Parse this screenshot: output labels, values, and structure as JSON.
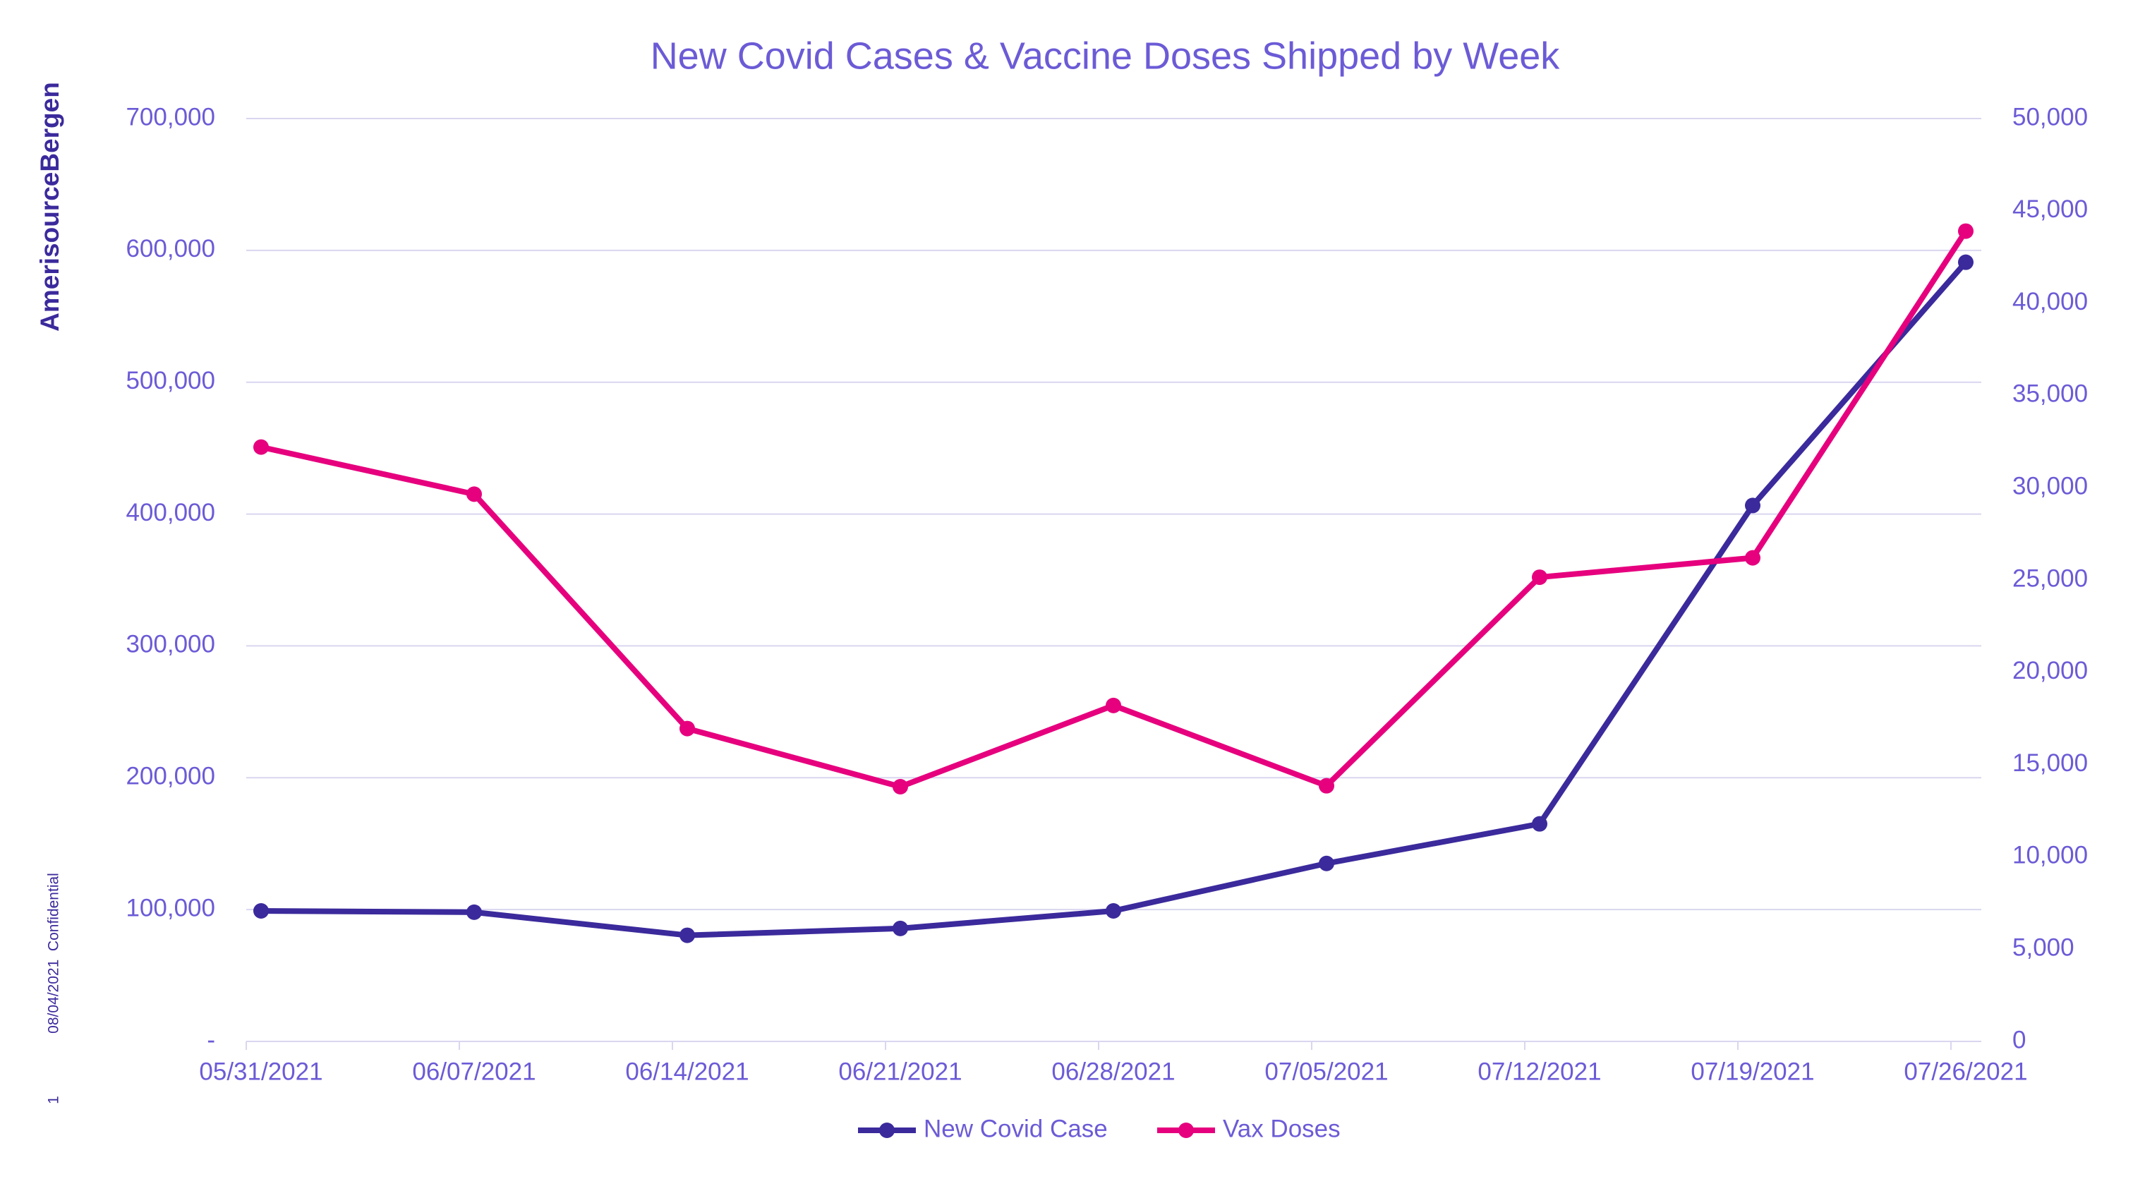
{
  "branding": {
    "logo": "AmerisourceBergen",
    "footer": "08/04/2021  Confidential",
    "page": "1"
  },
  "chart_data": {
    "type": "line",
    "title": "New Covid Cases & Vaccine Doses Shipped by Week",
    "categories": [
      "05/31/2021",
      "06/07/2021",
      "06/14/2021",
      "06/21/2021",
      "06/28/2021",
      "07/05/2021",
      "07/12/2021",
      "07/19/2021",
      "07/26/2021"
    ],
    "series": [
      {
        "name": "New Covid Case",
        "color": "#3b2a9c",
        "values": [
          99000,
          98000,
          80500,
          85700,
          99000,
          135000,
          165000,
          406500,
          591000
        ]
      },
      {
        "name": "Vax Doses",
        "color": "#e6007e",
        "axis": "y2",
        "values": [
          32200,
          29650,
          16950,
          13800,
          18200,
          13850,
          25150,
          26200,
          43900
        ]
      }
    ],
    "ylim": [
      0,
      700000
    ],
    "yticks": [
      {
        "value": 0,
        "label": "-"
      },
      {
        "value": 100000,
        "label": "100,000"
      },
      {
        "value": 200000,
        "label": "200,000"
      },
      {
        "value": 300000,
        "label": "300,000"
      },
      {
        "value": 400000,
        "label": "400,000"
      },
      {
        "value": 500000,
        "label": "500,000"
      },
      {
        "value": 600000,
        "label": "600,000"
      },
      {
        "value": 700000,
        "label": "700,000"
      }
    ],
    "y2lim": [
      0,
      50000
    ],
    "y2ticks": [
      0,
      {
        "value": 5000,
        "label": "5,000"
      },
      {
        "value": 10000,
        "label": "10,000"
      },
      {
        "value": 15000,
        "label": "15,000"
      },
      {
        "value": 20000,
        "label": "20,000"
      },
      {
        "value": 25000,
        "label": "25,000"
      },
      {
        "value": 30000,
        "label": "30,000"
      },
      {
        "value": 35000,
        "label": "35,000"
      },
      {
        "value": 40000,
        "label": "40,000"
      },
      {
        "value": 45000,
        "label": "45,000"
      },
      {
        "value": 50000,
        "label": "50,000"
      }
    ],
    "grid": true,
    "legend": "bottom"
  }
}
